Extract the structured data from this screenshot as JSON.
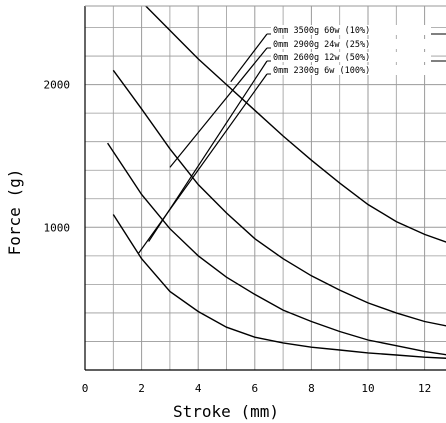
{
  "chart_data": {
    "type": "line",
    "xlabel": "Stroke (mm)",
    "ylabel": "Force (g)",
    "xlim": [
      0,
      12
    ],
    "ylim": [
      0,
      2600
    ],
    "grid": true,
    "legend_placement": "top-right",
    "x_ticks": [
      "0",
      "2",
      "4",
      "6",
      "8",
      "10",
      "12"
    ],
    "y_ticks": [
      "1000",
      "2000"
    ],
    "y_tick_values": [
      1000,
      2000
    ],
    "series": [
      {
        "name": "0mm 3500g 60w (10%)",
        "points": [
          [
            1.9,
            2600
          ],
          [
            3,
            2380
          ],
          [
            4,
            2180
          ],
          [
            5,
            2000
          ],
          [
            6,
            1820
          ],
          [
            7,
            1640
          ],
          [
            8,
            1470
          ],
          [
            9,
            1310
          ],
          [
            10,
            1160
          ],
          [
            11,
            1040
          ],
          [
            12,
            950
          ],
          [
            13,
            880
          ]
        ]
      },
      {
        "name": "0mm 2900g 24w (25%)",
        "points": [
          [
            1,
            2100
          ],
          [
            2,
            1830
          ],
          [
            3,
            1550
          ],
          [
            4,
            1300
          ],
          [
            5,
            1100
          ],
          [
            6,
            920
          ],
          [
            7,
            780
          ],
          [
            8,
            660
          ],
          [
            9,
            560
          ],
          [
            10,
            470
          ],
          [
            11,
            400
          ],
          [
            12,
            340
          ],
          [
            13,
            300
          ]
        ]
      },
      {
        "name": "0mm 2600g 12w (50%)",
        "points": [
          [
            0.8,
            1590
          ],
          [
            1.5,
            1380
          ],
          [
            2,
            1230
          ],
          [
            3,
            990
          ],
          [
            4,
            800
          ],
          [
            5,
            650
          ],
          [
            6,
            530
          ],
          [
            7,
            420
          ],
          [
            8,
            340
          ],
          [
            9,
            270
          ],
          [
            10,
            210
          ],
          [
            11,
            170
          ],
          [
            12,
            130
          ],
          [
            13,
            100
          ]
        ]
      },
      {
        "name": "0mm 2300g 6w (100%)",
        "points": [
          [
            1,
            1090
          ],
          [
            2,
            780
          ],
          [
            3,
            550
          ],
          [
            4,
            410
          ],
          [
            5,
            300
          ],
          [
            6,
            230
          ],
          [
            7,
            190
          ],
          [
            8,
            160
          ],
          [
            9,
            140
          ],
          [
            10,
            120
          ],
          [
            11,
            105
          ],
          [
            12,
            90
          ],
          [
            13,
            80
          ]
        ]
      }
    ],
    "legend_anchor_points": [
      [
        5.15,
        2020
      ],
      [
        3.0,
        1420
      ],
      [
        2.25,
        900
      ],
      [
        1.9,
        820
      ]
    ]
  }
}
